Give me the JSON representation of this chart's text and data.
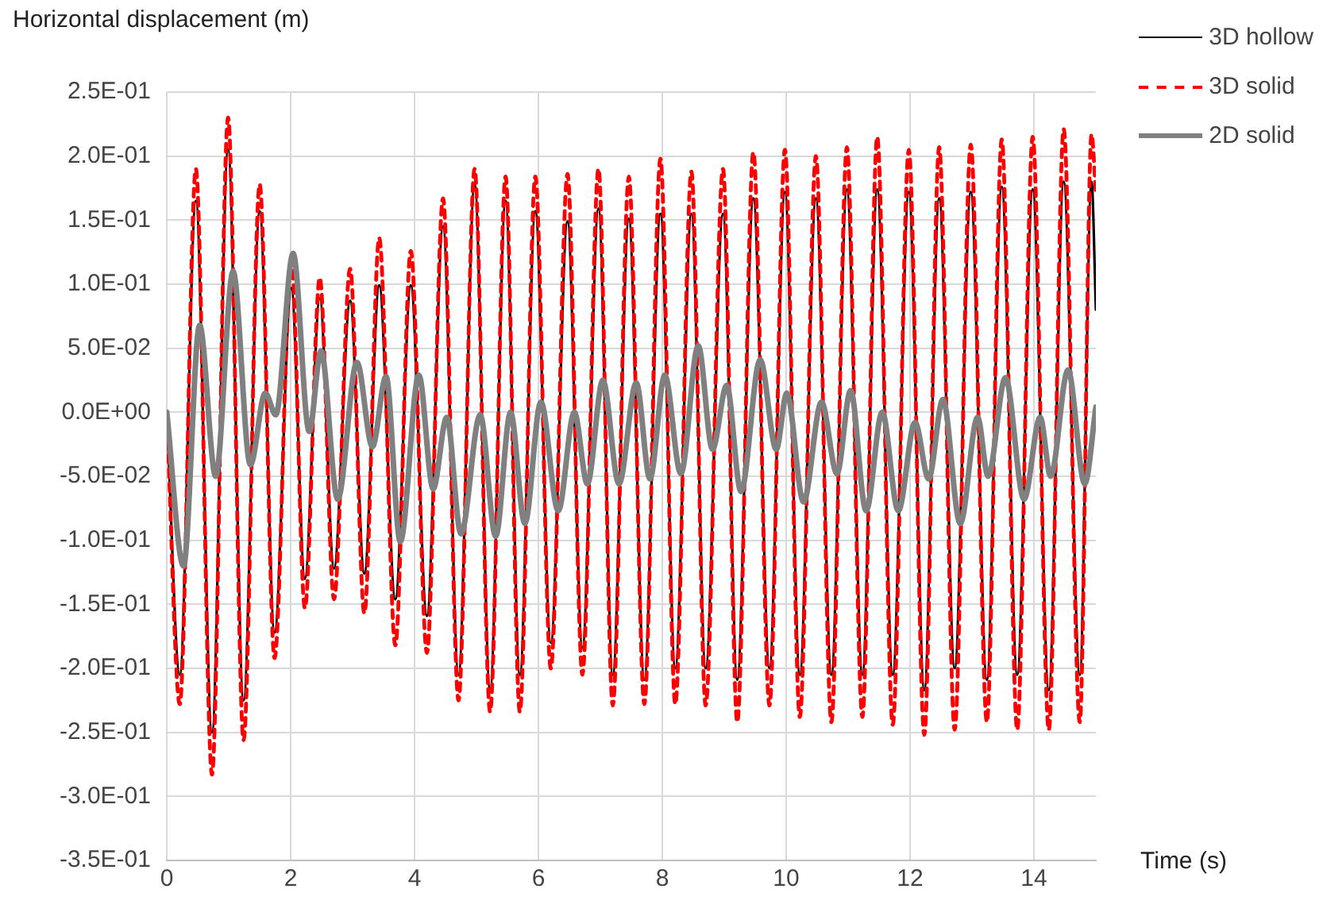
{
  "chart_data": {
    "type": "line",
    "ylabel": "Horizontal displacement (m)",
    "xlabel": "Time (s)",
    "xlim": [
      0,
      15
    ],
    "xticks": [
      0,
      2,
      4,
      6,
      8,
      10,
      12,
      14
    ],
    "ylim": [
      -0.35,
      0.25
    ],
    "yticks": [
      {
        "value": 0.25,
        "label": "2.5E-01"
      },
      {
        "value": 0.2,
        "label": "2.0E-01"
      },
      {
        "value": 0.15,
        "label": "1.5E-01"
      },
      {
        "value": 0.1,
        "label": "1.0E-01"
      },
      {
        "value": 0.05,
        "label": "5.0E-02"
      },
      {
        "value": 0,
        "label": "0.0E+00"
      },
      {
        "value": -0.05,
        "label": "-5.0E-02"
      },
      {
        "value": -0.1,
        "label": "-1.0E-01"
      },
      {
        "value": -0.15,
        "label": "-1.5E-01"
      },
      {
        "value": -0.2,
        "label": "-2.0E-01"
      },
      {
        "value": -0.25,
        "label": "-2.5E-01"
      },
      {
        "value": -0.3,
        "label": "-3.0E-01"
      },
      {
        "value": -0.35,
        "label": "-3.5E-01"
      }
    ],
    "grid": true,
    "legend": "top right",
    "marker": "none",
    "series": [
      {
        "name": "3D hollow",
        "color": "#000000",
        "line_style": "solid",
        "x": [
          0,
          0.21,
          0.47,
          0.73,
          0.99,
          1.24,
          1.5,
          1.74,
          2.01,
          2.23,
          2.47,
          2.7,
          2.96,
          3.19,
          3.43,
          3.69,
          3.94,
          4.2,
          4.46,
          4.71,
          4.97,
          5.22,
          5.47,
          5.7,
          5.95,
          6.2,
          6.47,
          6.71,
          6.97,
          7.2,
          7.46,
          7.71,
          7.97,
          8.21,
          8.47,
          8.7,
          8.98,
          9.21,
          9.47,
          9.73,
          9.98,
          10.22,
          10.48,
          10.73,
          10.98,
          11.23,
          11.47,
          11.72,
          11.98,
          12.23,
          12.47,
          12.72,
          12.98,
          13.24,
          13.48,
          13.73,
          13.98,
          14.24,
          14.48,
          14.74,
          14.93,
          15
        ],
        "values": [
          0,
          -0.205,
          0.165,
          -0.25,
          0.205,
          -0.225,
          0.157,
          -0.172,
          0.097,
          -0.13,
          0.089,
          -0.122,
          0.087,
          -0.126,
          0.099,
          -0.146,
          0.099,
          -0.159,
          0.145,
          -0.205,
          0.178,
          -0.217,
          0.165,
          -0.205,
          0.157,
          -0.18,
          0.149,
          -0.184,
          0.159,
          -0.205,
          0.151,
          -0.209,
          0.155,
          -0.2,
          0.155,
          -0.2,
          0.155,
          -0.209,
          0.167,
          -0.2,
          0.172,
          -0.205,
          0.167,
          -0.205,
          0.174,
          -0.205,
          0.174,
          -0.205,
          0.172,
          -0.217,
          0.167,
          -0.2,
          0.172,
          -0.209,
          0.176,
          -0.205,
          0.174,
          -0.217,
          0.18,
          -0.205,
          0.18,
          0.08
        ]
      },
      {
        "name": "3D solid",
        "color": "#ff0000",
        "line_style": "dashed",
        "x": [
          0,
          0.21,
          0.47,
          0.73,
          0.99,
          1.24,
          1.5,
          1.74,
          2.01,
          2.23,
          2.47,
          2.7,
          2.96,
          3.19,
          3.43,
          3.69,
          3.94,
          4.2,
          4.46,
          4.71,
          4.97,
          5.22,
          5.47,
          5.7,
          5.95,
          6.2,
          6.47,
          6.71,
          6.97,
          7.2,
          7.46,
          7.71,
          7.97,
          8.21,
          8.47,
          8.7,
          8.98,
          9.21,
          9.47,
          9.73,
          9.98,
          10.22,
          10.48,
          10.73,
          10.98,
          11.23,
          11.47,
          11.72,
          11.98,
          12.23,
          12.47,
          12.72,
          12.98,
          13.24,
          13.48,
          13.73,
          13.98,
          14.24,
          14.48,
          14.74,
          14.93,
          15
        ],
        "values": [
          0,
          -0.228,
          0.19,
          -0.283,
          0.23,
          -0.256,
          0.178,
          -0.192,
          0.12,
          -0.153,
          0.105,
          -0.146,
          0.112,
          -0.157,
          0.136,
          -0.182,
          0.126,
          -0.188,
          0.167,
          -0.225,
          0.19,
          -0.234,
          0.184,
          -0.234,
          0.184,
          -0.2,
          0.186,
          -0.205,
          0.19,
          -0.229,
          0.184,
          -0.228,
          0.198,
          -0.228,
          0.188,
          -0.229,
          0.19,
          -0.242,
          0.203,
          -0.229,
          0.205,
          -0.238,
          0.2,
          -0.242,
          0.207,
          -0.238,
          0.215,
          -0.244,
          0.205,
          -0.252,
          0.207,
          -0.248,
          0.209,
          -0.242,
          0.213,
          -0.248,
          0.215,
          -0.248,
          0.221,
          -0.242,
          0.217,
          0.17
        ]
      },
      {
        "name": "2D solid",
        "color": "#808080",
        "line_style": "solid",
        "x": [
          0,
          0.27,
          0.53,
          0.79,
          1.07,
          1.35,
          1.59,
          1.76,
          2.04,
          2.3,
          2.49,
          2.76,
          3.07,
          3.32,
          3.54,
          3.77,
          4.07,
          4.3,
          4.52,
          4.75,
          5.06,
          5.31,
          5.55,
          5.78,
          6.04,
          6.32,
          6.58,
          6.79,
          7.04,
          7.3,
          7.58,
          7.8,
          8.04,
          8.3,
          8.58,
          8.81,
          9.04,
          9.27,
          9.58,
          9.84,
          10.01,
          10.28,
          10.57,
          10.82,
          11.04,
          11.29,
          11.55,
          11.81,
          12.08,
          12.3,
          12.53,
          12.81,
          13.09,
          13.26,
          13.54,
          13.84,
          14.1,
          14.27,
          14.55,
          14.82,
          15
        ],
        "values": [
          0,
          -0.12,
          0.068,
          -0.05,
          0.11,
          -0.041,
          0.015,
          -0.002,
          0.124,
          -0.015,
          0.048,
          -0.068,
          0.039,
          -0.027,
          0.028,
          -0.101,
          0.029,
          -0.06,
          -0.004,
          -0.095,
          -0.002,
          -0.097,
          0,
          -0.087,
          0.008,
          -0.077,
          0,
          -0.056,
          0.025,
          -0.056,
          0.023,
          -0.052,
          0.029,
          -0.048,
          0.052,
          -0.029,
          0.021,
          -0.062,
          0.041,
          -0.029,
          0.015,
          -0.07,
          0.008,
          -0.048,
          0.017,
          -0.077,
          0,
          -0.077,
          -0.008,
          -0.052,
          0.01,
          -0.087,
          -0.004,
          -0.05,
          0.027,
          -0.068,
          -0.004,
          -0.05,
          0.033,
          -0.056,
          0.004
        ]
      }
    ]
  }
}
